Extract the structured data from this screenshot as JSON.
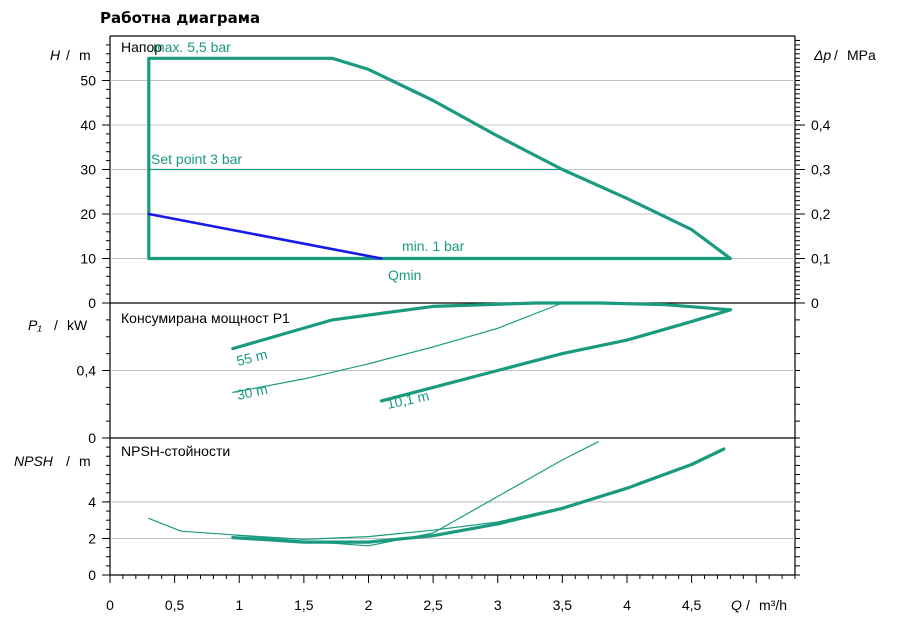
{
  "title": "Работна диаграма",
  "colors": {
    "curve": "#1a9a7f",
    "minline": "#1a1ae6",
    "axis": "#000000",
    "grid": "#b0b0b0"
  },
  "chart_data": [
    {
      "type": "line",
      "panel": "head",
      "title": "Напор",
      "ylabel": "H",
      "yunit": "m",
      "ylim": [
        0,
        60
      ],
      "yticks": [
        "0",
        "10",
        "20",
        "30",
        "40",
        "50"
      ],
      "y2label": "Δp",
      "y2unit": "MPa",
      "y2lim": [
        0,
        0.6
      ],
      "y2ticks": [
        "0",
        "0,1",
        "0,2",
        "0,3",
        "0,4"
      ],
      "series": [
        {
          "name": "max. 5,5 bar",
          "style": "thick",
          "points": [
            [
              0.3,
              10
            ],
            [
              0.3,
              55
            ],
            [
              1.72,
              55
            ],
            [
              2.0,
              52.5
            ],
            [
              2.5,
              45.5
            ],
            [
              3.0,
              37.5
            ],
            [
              3.5,
              30
            ],
            [
              4.0,
              23.5
            ],
            [
              4.5,
              16.5
            ],
            [
              4.8,
              10
            ],
            [
              0.3,
              10
            ]
          ]
        },
        {
          "name": "Set point 3 bar",
          "style": "thin",
          "points": [
            [
              0.3,
              30
            ],
            [
              3.5,
              30
            ]
          ]
        },
        {
          "name": "min. 1 bar",
          "style": "blue",
          "points": [
            [
              0.3,
              20
            ],
            [
              2.1,
              10
            ]
          ]
        }
      ],
      "annotations": [
        "max. 5,5 bar",
        "Set point 3 bar",
        "min. 1 bar",
        "Qmin"
      ]
    },
    {
      "type": "line",
      "panel": "power",
      "title": "Консумирана мощност P1",
      "ylabel": "P₁",
      "yunit": "kW",
      "ylim": [
        0,
        0.8
      ],
      "yticks": [
        "0",
        "0,4"
      ],
      "series": [
        {
          "name": "55 m",
          "style": "thick",
          "points": [
            [
              0.95,
              0.53
            ],
            [
              1.72,
              0.7
            ],
            [
              2.5,
              0.78
            ],
            [
              3.3,
              0.8
            ],
            [
              3.8,
              0.8
            ],
            [
              4.3,
              0.79
            ],
            [
              4.8,
              0.76
            ]
          ]
        },
        {
          "name": "30 m",
          "style": "thin",
          "points": [
            [
              0.95,
              0.27
            ],
            [
              1.5,
              0.35
            ],
            [
              2.0,
              0.44
            ],
            [
              2.5,
              0.54
            ],
            [
              3.0,
              0.65
            ],
            [
              3.5,
              0.8
            ]
          ]
        },
        {
          "name": "10,1 m",
          "style": "thick",
          "points": [
            [
              2.1,
              0.22
            ],
            [
              2.5,
              0.3
            ],
            [
              3.0,
              0.4
            ],
            [
              3.5,
              0.5
            ],
            [
              4.0,
              0.58
            ],
            [
              4.5,
              0.69
            ],
            [
              4.8,
              0.76
            ]
          ]
        }
      ],
      "annotations": [
        "55 m",
        "30 m",
        "10,1 m"
      ]
    },
    {
      "type": "line",
      "panel": "npsh",
      "title": "NPSH-стойности",
      "ylabel": "NPSH",
      "yunit": "m",
      "ylim": [
        0,
        7.5
      ],
      "yticks": [
        "0",
        "2",
        "4"
      ],
      "series": [
        {
          "name": "thick",
          "style": "thick",
          "points": [
            [
              0.95,
              2.05
            ],
            [
              1.5,
              1.8
            ],
            [
              2.0,
              1.8
            ],
            [
              2.5,
              2.15
            ],
            [
              3.0,
              2.8
            ],
            [
              3.5,
              3.65
            ],
            [
              4.0,
              4.75
            ],
            [
              4.5,
              6.05
            ],
            [
              4.75,
              6.9
            ]
          ]
        },
        {
          "name": "thin-1",
          "style": "thin",
          "points": [
            [
              0.3,
              3.1
            ],
            [
              0.55,
              2.4
            ],
            [
              0.95,
              2.2
            ],
            [
              1.5,
              1.85
            ],
            [
              2.0,
              1.6
            ],
            [
              2.5,
              2.3
            ],
            [
              3.0,
              4.3
            ],
            [
              3.5,
              6.3
            ],
            [
              3.78,
              7.3
            ]
          ]
        },
        {
          "name": "thin-2",
          "style": "thin",
          "points": [
            [
              0.95,
              2.2
            ],
            [
              1.5,
              1.95
            ],
            [
              2.0,
              2.1
            ],
            [
              2.5,
              2.45
            ],
            [
              3.0,
              2.9
            ],
            [
              3.5,
              3.7
            ]
          ]
        }
      ]
    }
  ],
  "xaxis": {
    "label": "Q",
    "unit": "m³/h",
    "xlim": [
      0,
      5.3
    ],
    "ticks": [
      "0",
      "0,5",
      "1",
      "1,5",
      "2",
      "2,5",
      "3",
      "3,5",
      "4",
      "4,5"
    ]
  }
}
